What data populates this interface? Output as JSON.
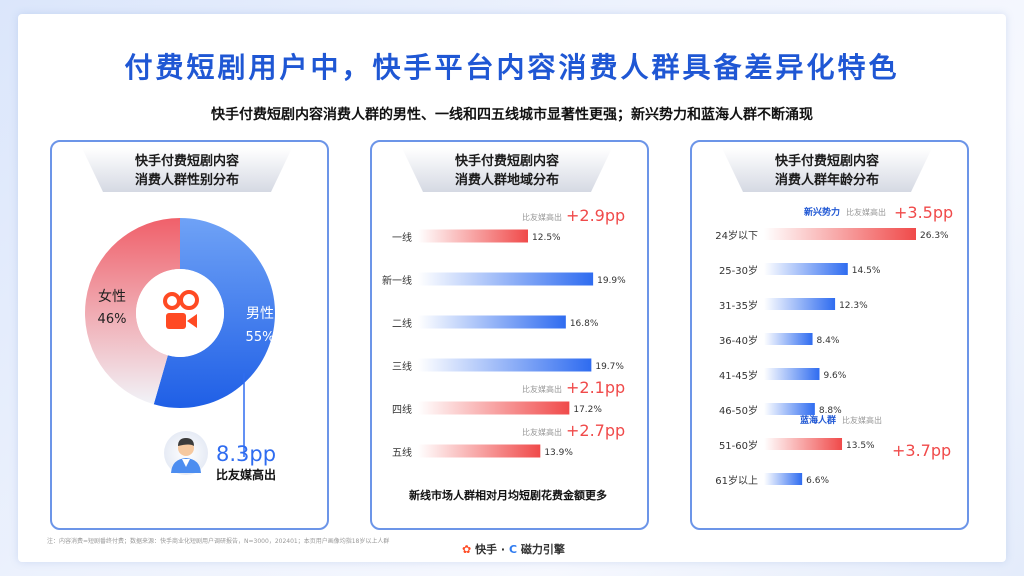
{
  "title": "付费短剧用户中，快手平台内容消费人群具备差异化特色",
  "subtitle": "快手付费短剧内容消费人群的男性、一线和四五线城市显著性更强；新兴势力和蓝海人群不断涌现",
  "note": "注：内容消费=短剧番终付费；数据来源：快手商业化短剧用户调研报告，N=3000，202401；本页用户画像均指18岁以上人群",
  "brand": {
    "kuaishou": "快手",
    "sep": "·",
    "cili": "磁力引擎"
  },
  "colors": {
    "blue": "#2f6cf0",
    "red": "#f04a4a",
    "light_red": "#f7a3a3"
  },
  "chart_data": [
    {
      "type": "pie",
      "title_line1": "快手付费短剧内容",
      "title_line2": "消费人群性别分布",
      "labels": [
        "男性",
        "女性"
      ],
      "values": [
        55,
        46
      ],
      "value_labels": [
        "55%",
        "46%"
      ],
      "center_icon": "kuaishou-logo-icon",
      "callout_value": "8.3pp",
      "callout_text": "比友媒高出"
    },
    {
      "type": "bar",
      "orientation": "horizontal",
      "title_line1": "快手付费短剧内容",
      "title_line2": "消费人群地域分布",
      "categories": [
        "一线",
        "新一线",
        "二线",
        "三线",
        "四线",
        "五线"
      ],
      "values": [
        12.5,
        19.9,
        16.8,
        19.7,
        17.2,
        13.9
      ],
      "value_labels": [
        "12.5%",
        "19.9%",
        "16.8%",
        "19.7%",
        "17.2%",
        "13.9%"
      ],
      "highlight": [
        true,
        false,
        false,
        false,
        true,
        true
      ],
      "annotations": [
        {
          "category": "一线",
          "text": "比友媒高出",
          "value": "+2.9pp"
        },
        {
          "category": "四线",
          "text": "比友媒高出",
          "value": "+2.1pp"
        },
        {
          "category": "五线",
          "text": "比友媒高出",
          "value": "+2.7pp"
        }
      ],
      "footer": "新线市场人群相对月均短剧花费金额更多"
    },
    {
      "type": "bar",
      "orientation": "horizontal",
      "title_line1": "快手付费短剧内容",
      "title_line2": "消费人群年龄分布",
      "categories": [
        "24岁以下",
        "25-30岁",
        "31-35岁",
        "36-40岁",
        "41-45岁",
        "46-50岁",
        "51-60岁",
        "61岁以上"
      ],
      "values": [
        26.3,
        14.5,
        12.3,
        8.4,
        9.6,
        8.8,
        13.5,
        6.6
      ],
      "value_labels": [
        "26.3%",
        "14.5%",
        "12.3%",
        "8.4%",
        "9.6%",
        "8.8%",
        "13.5%",
        "6.6%"
      ],
      "highlight": [
        true,
        false,
        false,
        false,
        false,
        false,
        true,
        false
      ],
      "annotations": [
        {
          "category": "24岁以下",
          "tag": "新兴势力",
          "text": "比友媒高出",
          "value": "+3.5pp"
        },
        {
          "category": "51-60岁",
          "tag": "蓝海人群",
          "text": "比友媒高出",
          "value": "+3.7pp"
        }
      ]
    }
  ]
}
